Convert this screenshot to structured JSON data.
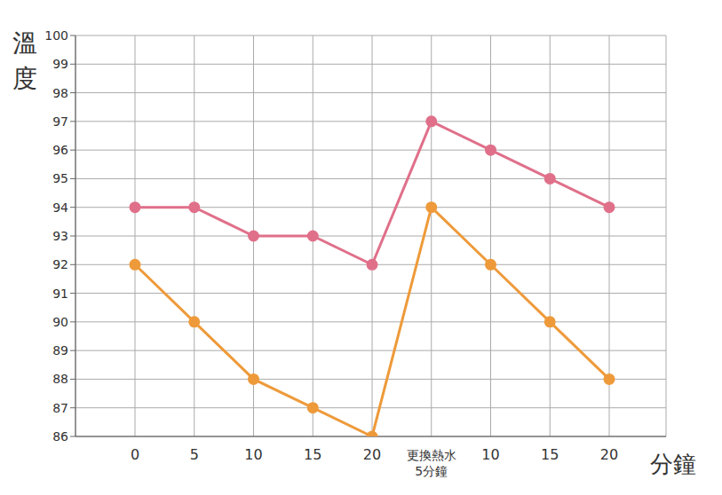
{
  "chart_data": {
    "type": "line",
    "x_label": "分鐘",
    "y_label": "溫度",
    "categories": [
      "0",
      "5",
      "10",
      "15",
      "20",
      "更換熱水 5分鐘",
      "10",
      "15",
      "20"
    ],
    "series": [
      {
        "color": "#e0708a",
        "marker": "circle",
        "values": [
          94,
          94,
          93,
          93,
          92,
          97,
          96,
          95,
          94
        ]
      },
      {
        "color": "#ee9a3a",
        "marker": "circle",
        "values": [
          92,
          90,
          88,
          87,
          86,
          94,
          92,
          90,
          88
        ]
      }
    ],
    "ylim": [
      86,
      100
    ],
    "yticks": [
      86,
      87,
      88,
      89,
      90,
      91,
      92,
      93,
      94,
      95,
      96,
      97,
      98,
      99,
      100
    ],
    "grid": true
  }
}
